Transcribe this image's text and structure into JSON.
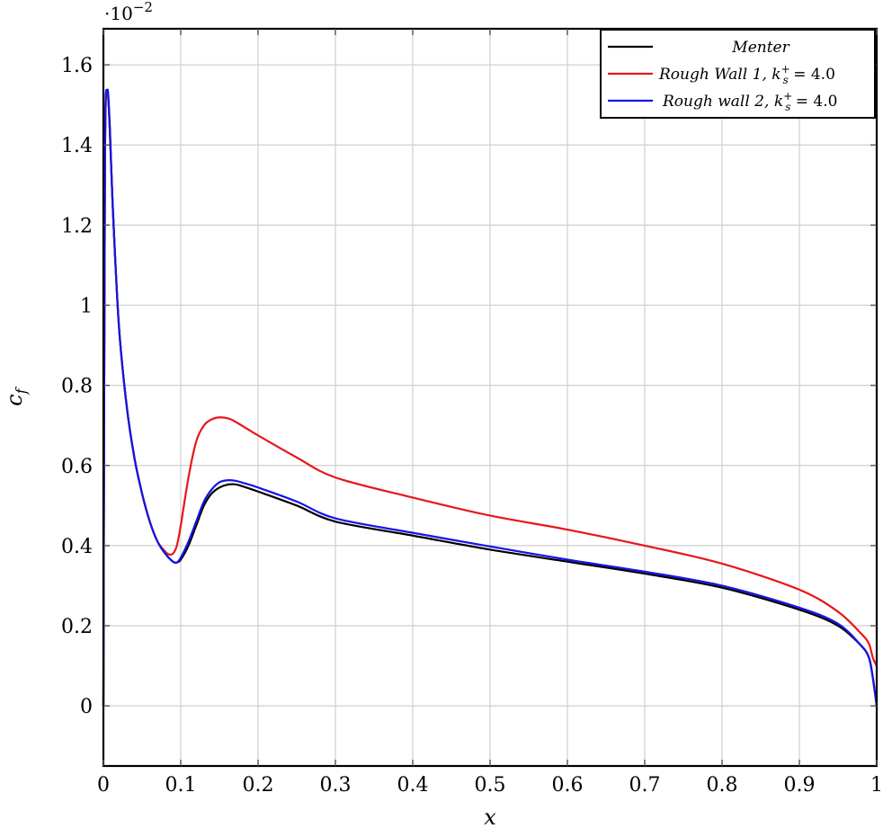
{
  "chart_data": {
    "type": "line",
    "xlabel": "x",
    "ylabel": "c_f",
    "y_scale_factor_label": "·10",
    "y_scale_factor_exponent": "−2",
    "xlim": [
      0,
      1
    ],
    "ylim": [
      -0.15,
      1.69
    ],
    "grid": true,
    "legend_placement": "top-right",
    "x_ticks": [
      0,
      0.1,
      0.2,
      0.3,
      0.4,
      0.5,
      0.6,
      0.7,
      0.8,
      0.9,
      1
    ],
    "x_tick_labels": [
      "0",
      "0.1",
      "0.2",
      "0.3",
      "0.4",
      "0.5",
      "0.6",
      "0.7",
      "0.8",
      "0.9",
      "1"
    ],
    "y_ticks": [
      0,
      0.2,
      0.4,
      0.6,
      0.8,
      1,
      1.2,
      1.4,
      1.6
    ],
    "y_tick_labels": [
      "0",
      "0.2",
      "0.4",
      "0.6",
      "0.8",
      "1",
      "1.2",
      "1.4",
      "1.6"
    ],
    "series": [
      {
        "name": "Menter",
        "legend_label": "Menter",
        "color": "#000000",
        "x": [
          0,
          0.002,
          0.005,
          0.008,
          0.012,
          0.02,
          0.03,
          0.04,
          0.05,
          0.06,
          0.07,
          0.08,
          0.09,
          0.095,
          0.1,
          0.11,
          0.12,
          0.13,
          0.14,
          0.15,
          0.16,
          0.17,
          0.18,
          0.2,
          0.25,
          0.3,
          0.4,
          0.5,
          0.6,
          0.7,
          0.8,
          0.9,
          0.95,
          0.98,
          0.99,
          0.995,
          1.0
        ],
        "y": [
          0,
          1.35,
          1.53,
          1.45,
          1.25,
          0.95,
          0.75,
          0.62,
          0.53,
          0.46,
          0.41,
          0.38,
          0.36,
          0.358,
          0.365,
          0.4,
          0.45,
          0.5,
          0.53,
          0.545,
          0.552,
          0.553,
          0.548,
          0.535,
          0.5,
          0.46,
          0.425,
          0.39,
          0.36,
          0.33,
          0.295,
          0.24,
          0.2,
          0.15,
          0.12,
          0.07,
          0.0
        ]
      },
      {
        "name": "Rough Wall 1",
        "legend_label": "Rough Wall 1, ",
        "legend_math": "k_s^+ = 4.0",
        "color": "#e8161b",
        "x": [
          0,
          0.002,
          0.005,
          0.008,
          0.012,
          0.02,
          0.03,
          0.04,
          0.05,
          0.06,
          0.07,
          0.08,
          0.085,
          0.09,
          0.095,
          0.1,
          0.11,
          0.12,
          0.13,
          0.14,
          0.15,
          0.16,
          0.17,
          0.2,
          0.25,
          0.3,
          0.4,
          0.5,
          0.6,
          0.7,
          0.8,
          0.9,
          0.95,
          0.98,
          0.99,
          0.995,
          1.0
        ],
        "y": [
          0,
          1.35,
          1.53,
          1.45,
          1.25,
          0.95,
          0.75,
          0.62,
          0.53,
          0.46,
          0.41,
          0.385,
          0.378,
          0.38,
          0.4,
          0.45,
          0.57,
          0.66,
          0.7,
          0.715,
          0.72,
          0.718,
          0.71,
          0.675,
          0.62,
          0.57,
          0.52,
          0.475,
          0.44,
          0.4,
          0.355,
          0.29,
          0.235,
          0.18,
          0.155,
          0.12,
          0.1
        ]
      },
      {
        "name": "Rough wall 2",
        "legend_label": "Rough wall 2, ",
        "legend_math": "k_s^+ = 4.0",
        "color": "#1414e6",
        "x": [
          0,
          0.002,
          0.005,
          0.008,
          0.012,
          0.02,
          0.03,
          0.04,
          0.05,
          0.06,
          0.07,
          0.08,
          0.09,
          0.095,
          0.1,
          0.11,
          0.12,
          0.13,
          0.14,
          0.15,
          0.16,
          0.17,
          0.18,
          0.2,
          0.25,
          0.3,
          0.4,
          0.5,
          0.6,
          0.7,
          0.8,
          0.9,
          0.95,
          0.98,
          0.99,
          0.995,
          1.0
        ],
        "y": [
          0,
          1.36,
          1.535,
          1.46,
          1.25,
          0.95,
          0.75,
          0.62,
          0.53,
          0.46,
          0.41,
          0.38,
          0.36,
          0.358,
          0.37,
          0.41,
          0.46,
          0.51,
          0.54,
          0.558,
          0.563,
          0.562,
          0.557,
          0.545,
          0.51,
          0.468,
          0.432,
          0.398,
          0.365,
          0.335,
          0.3,
          0.245,
          0.205,
          0.15,
          0.12,
          0.07,
          0.0
        ]
      }
    ]
  }
}
